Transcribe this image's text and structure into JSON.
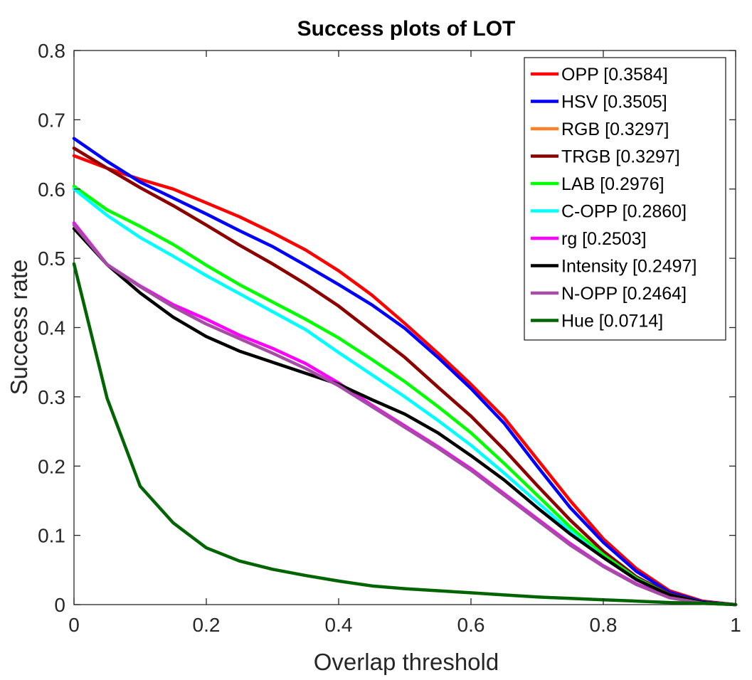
{
  "chart_data": {
    "type": "line",
    "title": "Success plots of LOT",
    "xlabel": "Overlap threshold",
    "ylabel": "Success rate",
    "xlim": [
      0,
      1
    ],
    "ylim": [
      0,
      0.8
    ],
    "xticks": [
      0,
      0.2,
      0.4,
      0.6,
      0.8,
      1
    ],
    "xtick_labels": [
      "0",
      "0.2",
      "0.4",
      "0.6",
      "0.8",
      "1"
    ],
    "yticks": [
      0,
      0.1,
      0.2,
      0.3,
      0.4,
      0.5,
      0.6,
      0.7,
      0.8
    ],
    "ytick_labels": [
      "0",
      "0.1",
      "0.2",
      "0.3",
      "0.4",
      "0.5",
      "0.6",
      "0.7",
      "0.8"
    ],
    "grid": false,
    "legend_position": "top-right",
    "x": [
      0,
      0.05,
      0.1,
      0.15,
      0.2,
      0.25,
      0.3,
      0.35,
      0.4,
      0.45,
      0.5,
      0.55,
      0.6,
      0.65,
      0.7,
      0.75,
      0.8,
      0.85,
      0.9,
      0.95,
      1.0
    ],
    "series": [
      {
        "name": "OPP [0.3584]",
        "color": "#ff0000",
        "values": [
          0.648,
          0.63,
          0.614,
          0.6,
          0.58,
          0.56,
          0.537,
          0.512,
          0.482,
          0.447,
          0.406,
          0.363,
          0.318,
          0.27,
          0.21,
          0.15,
          0.095,
          0.052,
          0.02,
          0.005,
          0.0
        ]
      },
      {
        "name": "HSV [0.3505]",
        "color": "#0000ff",
        "values": [
          0.673,
          0.64,
          0.61,
          0.587,
          0.564,
          0.54,
          0.517,
          0.49,
          0.462,
          0.433,
          0.399,
          0.357,
          0.312,
          0.262,
          0.2,
          0.14,
          0.09,
          0.048,
          0.018,
          0.004,
          0.0
        ]
      },
      {
        "name": "RGB [0.3297]",
        "color": "#ff7f27",
        "values": [
          0.659,
          0.63,
          0.602,
          0.576,
          0.548,
          0.519,
          0.492,
          0.463,
          0.431,
          0.394,
          0.357,
          0.314,
          0.272,
          0.224,
          0.172,
          0.122,
          0.077,
          0.04,
          0.015,
          0.003,
          0.0
        ]
      },
      {
        "name": "TRGB [0.3297]",
        "color": "#8b0000",
        "values": [
          0.659,
          0.63,
          0.602,
          0.576,
          0.548,
          0.519,
          0.492,
          0.463,
          0.431,
          0.394,
          0.357,
          0.314,
          0.272,
          0.224,
          0.172,
          0.122,
          0.077,
          0.04,
          0.015,
          0.003,
          0.0
        ]
      },
      {
        "name": "LAB [0.2976]",
        "color": "#00ff00",
        "values": [
          0.604,
          0.57,
          0.546,
          0.52,
          0.49,
          0.462,
          0.437,
          0.412,
          0.385,
          0.354,
          0.322,
          0.286,
          0.248,
          0.204,
          0.158,
          0.112,
          0.072,
          0.038,
          0.014,
          0.003,
          0.0
        ]
      },
      {
        "name": "C-OPP [0.2860]",
        "color": "#00ffff",
        "values": [
          0.6,
          0.562,
          0.53,
          0.503,
          0.475,
          0.449,
          0.423,
          0.397,
          0.364,
          0.332,
          0.3,
          0.266,
          0.23,
          0.19,
          0.148,
          0.106,
          0.068,
          0.036,
          0.013,
          0.003,
          0.0
        ]
      },
      {
        "name": "rg [0.2503]",
        "color": "#ff00ff",
        "values": [
          0.551,
          0.491,
          0.46,
          0.433,
          0.412,
          0.389,
          0.37,
          0.348,
          0.32,
          0.288,
          0.258,
          0.228,
          0.196,
          0.16,
          0.124,
          0.088,
          0.056,
          0.03,
          0.011,
          0.002,
          0.0
        ]
      },
      {
        "name": "Intensity [0.2497]",
        "color": "#000000",
        "values": [
          0.543,
          0.491,
          0.45,
          0.415,
          0.387,
          0.366,
          0.35,
          0.334,
          0.318,
          0.296,
          0.275,
          0.248,
          0.215,
          0.18,
          0.14,
          0.102,
          0.068,
          0.036,
          0.014,
          0.003,
          0.0
        ]
      },
      {
        "name": "N-OPP [0.2464]",
        "color": "#a64ca6",
        "values": [
          0.548,
          0.491,
          0.459,
          0.43,
          0.405,
          0.384,
          0.363,
          0.341,
          0.316,
          0.286,
          0.256,
          0.226,
          0.194,
          0.158,
          0.122,
          0.086,
          0.055,
          0.029,
          0.01,
          0.002,
          0.0
        ]
      },
      {
        "name": "Hue [0.0714]",
        "color": "#006400",
        "values": [
          0.492,
          0.298,
          0.171,
          0.118,
          0.082,
          0.063,
          0.051,
          0.042,
          0.034,
          0.027,
          0.023,
          0.02,
          0.017,
          0.014,
          0.011,
          0.009,
          0.007,
          0.005,
          0.003,
          0.002,
          0.0
        ]
      }
    ]
  }
}
